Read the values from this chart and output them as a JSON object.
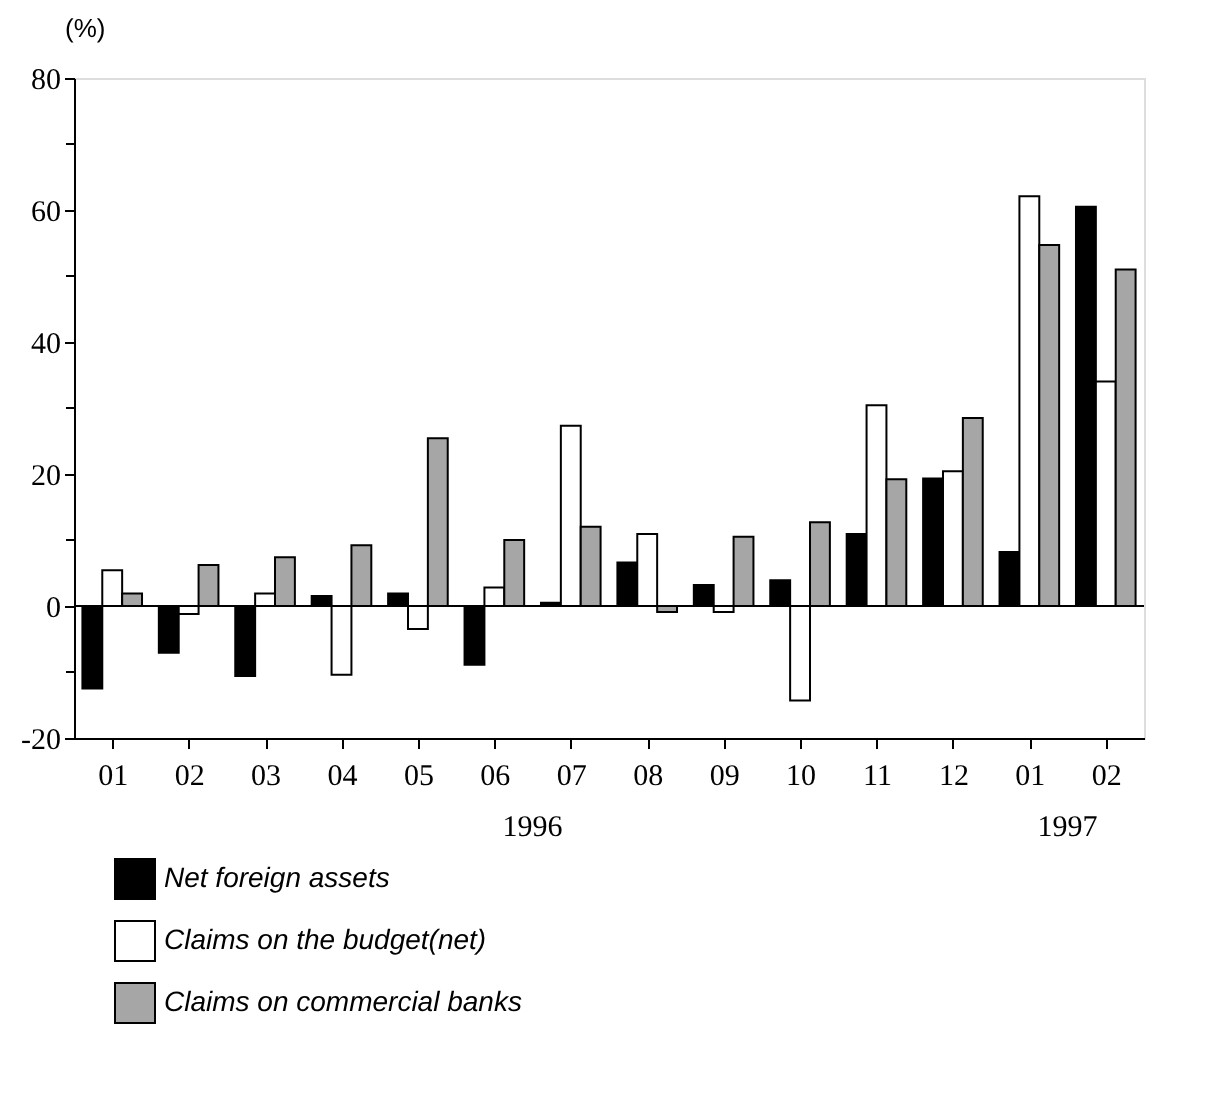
{
  "chart_data": {
    "type": "bar",
    "ylabel": "(%)",
    "categories": [
      "01",
      "02",
      "03",
      "04",
      "05",
      "06",
      "07",
      "08",
      "09",
      "10",
      "11",
      "12",
      "01",
      "02"
    ],
    "series": [
      {
        "name": "Net foreign assets",
        "color": "#000000",
        "values": [
          -12.5,
          -7.1,
          -10.6,
          1.5,
          1.9,
          -8.9,
          0.5,
          6.6,
          3.2,
          3.9,
          10.9,
          19.3,
          8.2,
          60.5
        ]
      },
      {
        "name": "Claims on the budget(net)",
        "color": "#ffffff",
        "values": [
          5.4,
          -1.2,
          1.9,
          -10.4,
          -3.5,
          2.8,
          27.3,
          10.9,
          -0.9,
          -14.3,
          30.4,
          20.4,
          62.1,
          34
        ]
      },
      {
        "name": "Claims on commercial banks",
        "color": "#a6a6a6",
        "values": [
          1.9,
          6.2,
          7.4,
          9.2,
          25.4,
          10,
          12,
          -0.9,
          10.5,
          12.7,
          19.2,
          28.5,
          54.7,
          51
        ]
      }
    ],
    "ylim": [
      -20,
      80
    ],
    "yticks": [
      -20,
      {
        "value": -10,
        "label": null
      },
      0,
      {
        "value": 10,
        "label": null
      },
      20,
      {
        "value": 30,
        "label": null
      },
      40,
      {
        "value": 50,
        "label": null
      },
      60,
      {
        "value": 70,
        "label": null
      },
      80
    ],
    "ref_lines": [
      {
        "axis": "y",
        "value": 0,
        "color": "#000000"
      }
    ],
    "annotations": [
      "1996",
      "1997"
    ],
    "legend": "bottom left",
    "grid": false
  }
}
